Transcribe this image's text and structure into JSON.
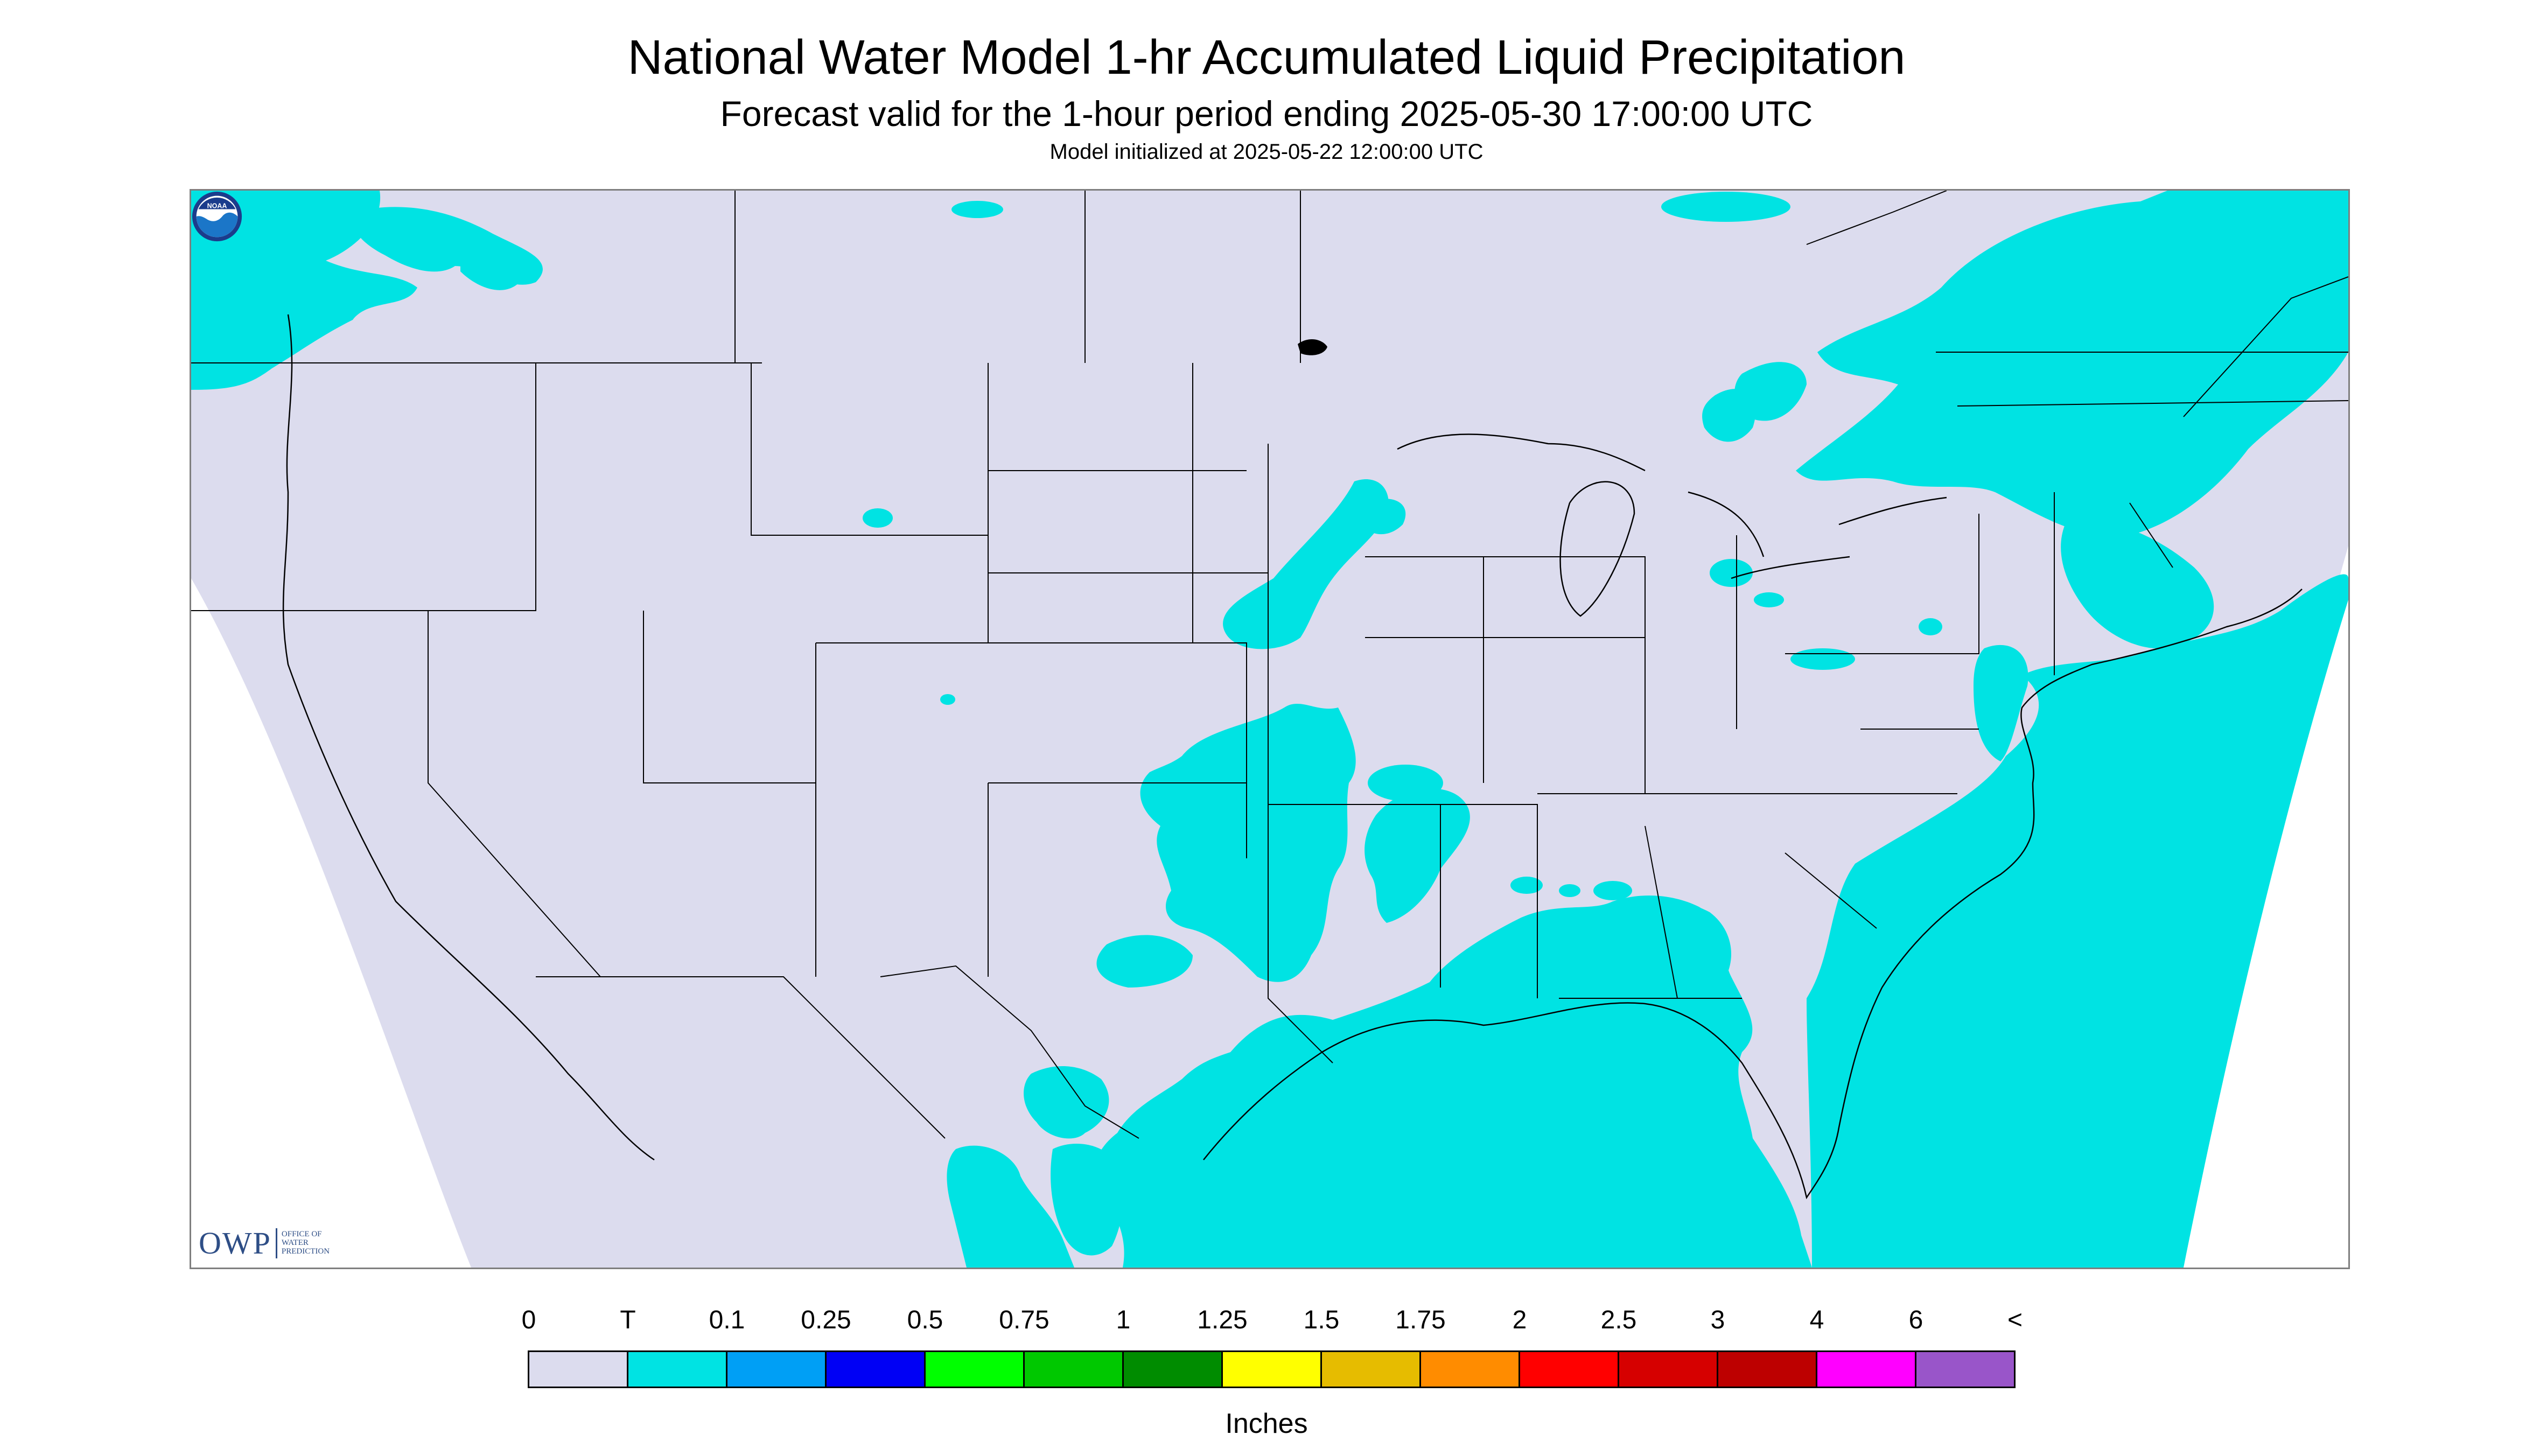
{
  "header": {
    "title": "National Water Model 1-hr Accumulated Liquid Precipitation",
    "subtitle": "Forecast valid for the 1-hour period ending 2025-05-30 17:00:00 UTC",
    "init": "Model initialized at 2025-05-22 12:00:00 UTC"
  },
  "map": {
    "background_color": "#dcdcee",
    "precip_color": "#00e3e3",
    "outside_color": "#ffffff",
    "boundary_color": "#000000",
    "owp_logo": {
      "mark": "OWP",
      "text_lines": [
        "OFFICE OF",
        "WATER",
        "PREDICTION"
      ],
      "color": "#2e4e86"
    },
    "noaa_logo": {
      "text": "NOAA",
      "icon": "noaa-emblem-icon"
    }
  },
  "legend": {
    "labels": [
      "0",
      "T",
      "0.1",
      "0.25",
      "0.5",
      "0.75",
      "1",
      "1.25",
      "1.5",
      "1.75",
      "2",
      "2.5",
      "3",
      "4",
      "6",
      "<"
    ],
    "colors": [
      "#dcdcee",
      "#00e3e3",
      "#009ff5",
      "#0000f5",
      "#00ff00",
      "#00c800",
      "#008c00",
      "#ffff00",
      "#e6bc00",
      "#ff8c00",
      "#ff0000",
      "#d60000",
      "#bd0000",
      "#ff00ff",
      "#9955c9"
    ],
    "units": "Inches"
  }
}
